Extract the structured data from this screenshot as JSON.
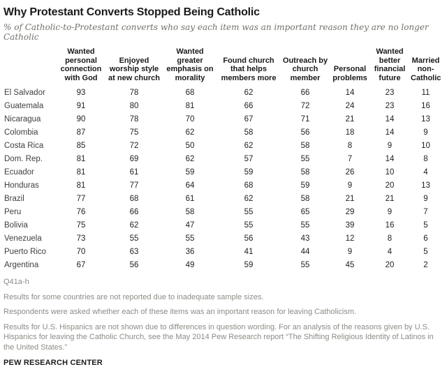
{
  "header": {
    "title": "Why Protestant Converts Stopped Being Catholic",
    "subtitle": "% of Catholic-to-Protestant converts who say each item was an important reason they are no longer Catholic"
  },
  "chart_data": {
    "type": "table",
    "title": "Why Protestant Converts Stopped Being Catholic",
    "subtitle": "% of Catholic-to-Protestant converts who say each item was an important reason they are no longer Catholic",
    "unit": "% saying item was an important reason",
    "columns": [
      "Wanted personal connection with God",
      "Enjoyed worship style at new church",
      "Wanted greater emphasis on morality",
      "Found church that helps members more",
      "Outreach by church member",
      "Personal problems",
      "Wanted better financial future",
      "Married non-Catholic"
    ],
    "rows": [
      {
        "country": "El Salvador",
        "values": [
          93,
          78,
          68,
          62,
          66,
          14,
          23,
          11
        ]
      },
      {
        "country": "Guatemala",
        "values": [
          91,
          80,
          81,
          66,
          72,
          24,
          23,
          16
        ]
      },
      {
        "country": "Nicaragua",
        "values": [
          90,
          78,
          70,
          67,
          71,
          21,
          14,
          13
        ]
      },
      {
        "country": "Colombia",
        "values": [
          87,
          75,
          62,
          58,
          56,
          18,
          14,
          9
        ]
      },
      {
        "country": "Costa Rica",
        "values": [
          85,
          72,
          50,
          62,
          58,
          8,
          9,
          10
        ]
      },
      {
        "country": "Dom. Rep.",
        "values": [
          81,
          69,
          62,
          57,
          55,
          7,
          14,
          8
        ]
      },
      {
        "country": "Ecuador",
        "values": [
          81,
          61,
          59,
          59,
          58,
          26,
          10,
          4
        ]
      },
      {
        "country": "Honduras",
        "values": [
          81,
          77,
          64,
          68,
          59,
          9,
          20,
          13
        ]
      },
      {
        "country": "Brazil",
        "values": [
          77,
          68,
          61,
          62,
          58,
          21,
          21,
          9
        ]
      },
      {
        "country": "Peru",
        "values": [
          76,
          66,
          58,
          55,
          65,
          29,
          9,
          7
        ]
      },
      {
        "country": "Bolivia",
        "values": [
          75,
          62,
          47,
          55,
          55,
          39,
          16,
          5
        ]
      },
      {
        "country": "Venezuela",
        "values": [
          73,
          55,
          55,
          56,
          43,
          12,
          8,
          6
        ]
      },
      {
        "country": "Puerto Rico",
        "values": [
          70,
          63,
          36,
          41,
          44,
          9,
          4,
          5
        ]
      },
      {
        "country": "Argentina",
        "values": [
          67,
          56,
          49,
          59,
          55,
          45,
          20,
          2
        ]
      }
    ]
  },
  "footer": {
    "source": "Q41a-h",
    "notes": [
      "Results for some countries are not reported due to inadequate sample sizes.",
      "Respondents were asked whether each of these items was an important reason for leaving Catholicism.",
      "Results for U.S. Hispanics are not shown due to differences in question wording. For an analysis of the reasons given by U.S. Hispanics for leaving the Catholic Church, see the May 2014 Pew Research report “The Shifting Religious Identity of Latinos in the United States.”"
    ],
    "brand": "PEW RESEARCH CENTER"
  },
  "colors": {
    "rule": "#000000",
    "title_text": "#1a1a1a",
    "subtitle_text": "#71716b",
    "note_text": "#8b8b85",
    "background": "#ffffff"
  }
}
